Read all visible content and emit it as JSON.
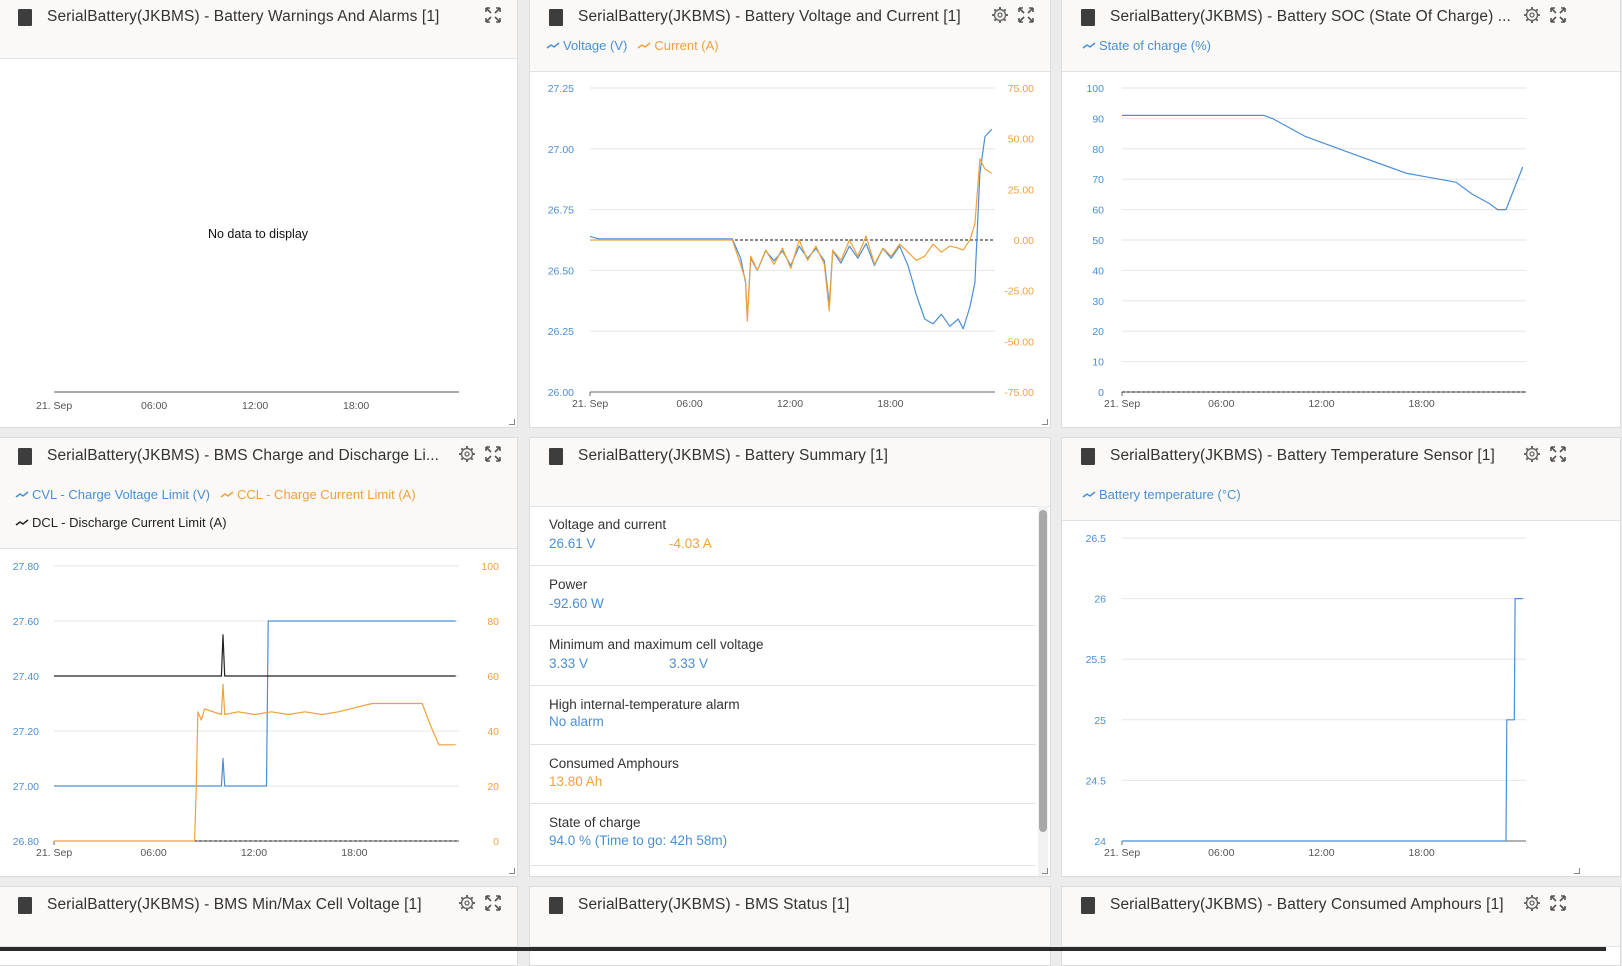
{
  "colors": {
    "blue": "#4a8fd4",
    "orange": "#f0a13a",
    "black": "#222222",
    "grid": "#e6e6e6"
  },
  "panels": {
    "warnings": {
      "title": "SerialBattery(JKBMS) - Battery Warnings And Alarms [1]",
      "no_data": "No data to display"
    },
    "volt_current": {
      "title": "SerialBattery(JKBMS) - Battery Voltage and Current [1]",
      "legend": [
        "Voltage (V)",
        "Current (A)"
      ]
    },
    "soc": {
      "title": "SerialBattery(JKBMS) - Battery SOC (State Of Charge) ...",
      "legend": [
        "State of charge (%)"
      ]
    },
    "bms_limits": {
      "title": "SerialBattery(JKBMS) - BMS Charge and Discharge Li...",
      "legend": [
        "CVL - Charge Voltage Limit (V)",
        "CCL - Charge Current Limit (A)",
        "DCL - Discharge Current Limit (A)"
      ]
    },
    "summary": {
      "title": "SerialBattery(JKBMS) - Battery Summary [1]",
      "rows": [
        {
          "label": "Voltage and current",
          "v1": "26.61 V",
          "v2": "-4.03 A"
        },
        {
          "label": "Power",
          "v1": "-92.60 W",
          "v2": ""
        },
        {
          "label": "Minimum and maximum cell voltage",
          "v1": "3.33 V",
          "v2": "3.33 V"
        },
        {
          "label": "High internal-temperature alarm",
          "v1": "No alarm",
          "v2": ""
        },
        {
          "label": "Consumed Amphours",
          "v1": "13.80 Ah",
          "v2": ""
        },
        {
          "label": "State of charge",
          "v1": "94.0 % (Time to go: 42h 58m)",
          "v2": ""
        }
      ]
    },
    "temperature": {
      "title": "SerialBattery(JKBMS) - Battery Temperature Sensor [1]",
      "legend": [
        "Battery temperature (°C)"
      ]
    },
    "minmax_cell": {
      "title": "SerialBattery(JKBMS) - BMS Min/Max Cell Voltage [1]"
    },
    "bms_status": {
      "title": "SerialBattery(JKBMS) - BMS Status [1]"
    },
    "consumed_ah": {
      "title": "SerialBattery(JKBMS) - Battery Consumed Amphours [1]"
    }
  },
  "chart_data": [
    {
      "id": "warnings",
      "type": "line",
      "x_ticks": [
        "21. Sep",
        "06:00",
        "12:00",
        "18:00"
      ],
      "series": []
    },
    {
      "id": "volt_current",
      "type": "line",
      "x_ticks": [
        "21. Sep",
        "06:00",
        "12:00",
        "18:00"
      ],
      "x_range_hours": [
        0,
        24.2
      ],
      "y_left": {
        "ticks": [
          "26.00",
          "26.25",
          "26.50",
          "26.75",
          "27.00",
          "27.25"
        ],
        "range": [
          26.0,
          27.25
        ]
      },
      "y_right": {
        "ticks": [
          "-75.00",
          "-50.00",
          "-25.00",
          "0.00",
          "25.00",
          "50.00",
          "75.00"
        ],
        "range": [
          -75,
          75
        ]
      },
      "zero_line_right": 0,
      "series": [
        {
          "name": "Voltage (V)",
          "axis": "left",
          "color": "blue",
          "x": [
            0,
            0.5,
            8.5,
            9.0,
            9.3,
            9.4,
            9.6,
            10.0,
            10.5,
            11.0,
            11.5,
            12.0,
            12.5,
            13.0,
            13.5,
            14.0,
            14.3,
            14.5,
            15.0,
            15.5,
            16.0,
            16.5,
            17.0,
            17.5,
            18.0,
            18.5,
            19.0,
            19.5,
            20.0,
            20.5,
            21.0,
            21.5,
            22.0,
            22.3,
            22.7,
            23.0,
            23.3,
            23.6,
            24.0
          ],
          "y": [
            26.64,
            26.63,
            26.63,
            26.55,
            26.45,
            26.3,
            26.55,
            26.5,
            26.58,
            26.54,
            26.58,
            26.52,
            26.6,
            26.55,
            26.59,
            26.54,
            26.36,
            26.58,
            26.53,
            26.6,
            26.55,
            26.61,
            26.52,
            26.59,
            26.55,
            26.6,
            26.52,
            26.4,
            26.3,
            26.28,
            26.32,
            26.27,
            26.3,
            26.26,
            26.35,
            26.45,
            26.9,
            27.05,
            27.08
          ]
        },
        {
          "name": "Current (A)",
          "axis": "right",
          "color": "orange",
          "x": [
            0,
            0.5,
            8.5,
            9.0,
            9.3,
            9.4,
            9.6,
            10.0,
            10.5,
            11.0,
            11.5,
            12.0,
            12.5,
            13.0,
            13.5,
            14.0,
            14.3,
            14.5,
            15.0,
            15.5,
            16.0,
            16.5,
            17.0,
            17.5,
            18.0,
            18.5,
            19.0,
            19.5,
            20.0,
            20.5,
            21.0,
            21.5,
            22.0,
            22.3,
            22.7,
            23.0,
            23.3,
            23.6,
            24.0
          ],
          "y": [
            0,
            0,
            0,
            -12,
            -20,
            -40,
            -8,
            -15,
            -5,
            -12,
            -4,
            -14,
            0,
            -10,
            -3,
            -12,
            -35,
            -5,
            -10,
            0,
            -8,
            2,
            -12,
            -4,
            -8,
            -2,
            -6,
            -10,
            -8,
            -2,
            -6,
            -3,
            -4,
            -5,
            0,
            8,
            40,
            35,
            33
          ]
        }
      ]
    },
    {
      "id": "soc",
      "type": "line",
      "x_ticks": [
        "21. Sep",
        "06:00",
        "12:00",
        "18:00"
      ],
      "x_range_hours": [
        0,
        24.2
      ],
      "y_left": {
        "ticks": [
          "0",
          "10",
          "20",
          "30",
          "40",
          "50",
          "60",
          "70",
          "80",
          "90",
          "100"
        ],
        "range": [
          0,
          100
        ]
      },
      "zero_line_left": 0,
      "series": [
        {
          "name": "State of charge (%)",
          "axis": "left",
          "color": "blue",
          "x": [
            0,
            8.5,
            9.0,
            10.0,
            11.0,
            12.0,
            13.0,
            14.0,
            15.0,
            16.0,
            17.0,
            18.0,
            19.0,
            20.0,
            21.0,
            22.0,
            22.5,
            23.0,
            24.0
          ],
          "y": [
            91,
            91,
            90,
            87,
            84,
            82,
            80,
            78,
            76,
            74,
            72,
            71,
            70,
            69,
            65,
            62,
            60,
            60,
            74
          ]
        }
      ]
    },
    {
      "id": "bms_limits",
      "type": "line",
      "x_ticks": [
        "21. Sep",
        "06:00",
        "12:00",
        "18:00"
      ],
      "x_range_hours": [
        0,
        24.2
      ],
      "y_left": {
        "ticks": [
          "26.80",
          "27.00",
          "27.20",
          "27.40",
          "27.60",
          "27.80"
        ],
        "range": [
          26.8,
          27.8
        ]
      },
      "y_right": {
        "ticks": [
          "0",
          "20",
          "40",
          "60",
          "80",
          "100"
        ],
        "range": [
          0,
          100
        ]
      },
      "zero_line_right": 0,
      "series": [
        {
          "name": "CVL - Charge Voltage Limit (V)",
          "axis": "left",
          "color": "blue",
          "x": [
            0,
            10.0,
            10.1,
            10.2,
            12.7,
            12.8,
            24.0
          ],
          "y": [
            27.0,
            27.0,
            27.1,
            27.0,
            27.0,
            27.6,
            27.6
          ]
        },
        {
          "name": "CCL - Charge Current Limit (A)",
          "axis": "right",
          "color": "orange",
          "x": [
            0,
            8.4,
            8.5,
            8.6,
            8.8,
            9.0,
            10.0,
            10.1,
            10.2,
            11.0,
            12.0,
            13.0,
            14.0,
            15.0,
            16.0,
            17.0,
            19.0,
            22.0,
            22.5,
            23.0,
            24.0
          ],
          "y": [
            0,
            0,
            20,
            47,
            44,
            48,
            46,
            57,
            46,
            47,
            46,
            47,
            46,
            47,
            46,
            47,
            50,
            50,
            42,
            35,
            35
          ]
        },
        {
          "name": "DCL - Discharge Current Limit (A)",
          "axis": "right",
          "color": "black",
          "x": [
            0,
            10.0,
            10.1,
            10.2,
            24.0
          ],
          "y": [
            60,
            60,
            75,
            60,
            60
          ]
        }
      ]
    },
    {
      "id": "temperature",
      "type": "line",
      "x_ticks": [
        "21. Sep",
        "06:00",
        "12:00",
        "18:00"
      ],
      "x_range_hours": [
        0,
        24.2
      ],
      "y_left": {
        "ticks": [
          "24",
          "24.5",
          "25",
          "25.5",
          "26",
          "26.5"
        ],
        "range": [
          24,
          26.5
        ]
      },
      "series": [
        {
          "name": "Battery temperature (°C)",
          "axis": "left",
          "color": "blue",
          "x": [
            0,
            23.0,
            23.05,
            23.5,
            23.55,
            24.0
          ],
          "y": [
            24,
            24,
            25,
            25,
            26,
            26
          ]
        }
      ]
    }
  ]
}
